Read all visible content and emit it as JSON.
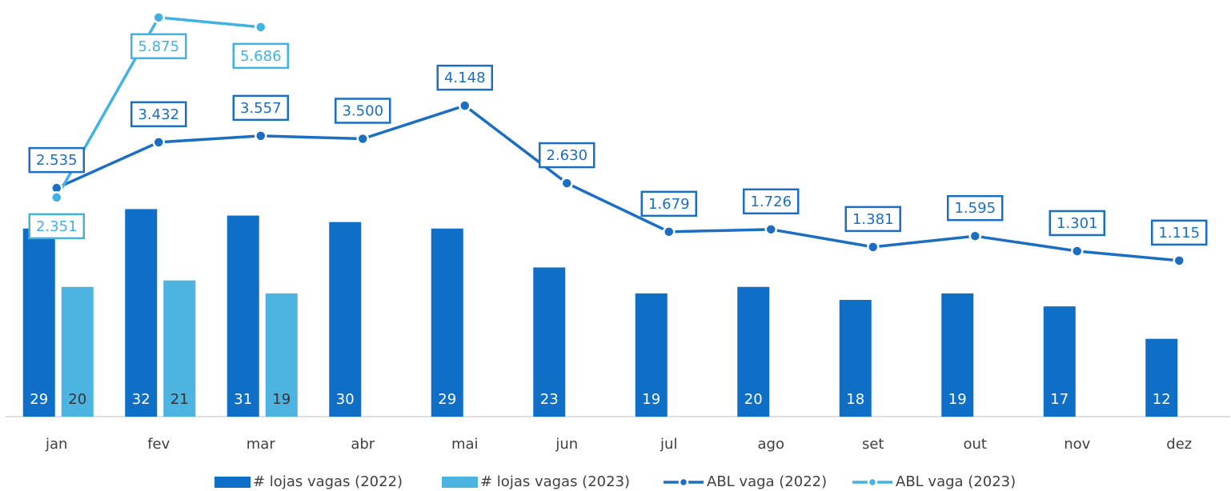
{
  "chart_data": {
    "type": "bar-line",
    "categories": [
      "jan",
      "fev",
      "mar",
      "abr",
      "mai",
      "jun",
      "jul",
      "ago",
      "set",
      "out",
      "nov",
      "dez"
    ],
    "series": [
      {
        "name": "# lojas vagas (2022)",
        "type": "bar",
        "color": "#0f6fc6",
        "values": [
          29,
          32,
          31,
          30,
          29,
          23,
          19,
          20,
          18,
          19,
          17,
          12
        ]
      },
      {
        "name": "# lojas vagas (2023)",
        "type": "bar",
        "color": "#4db3e0",
        "values": [
          20,
          21,
          19,
          null,
          null,
          null,
          null,
          null,
          null,
          null,
          null,
          null
        ]
      },
      {
        "name": "ABL vaga (2022)",
        "type": "line",
        "axis": "y2",
        "color": "#1b6ec2",
        "values": [
          2535,
          3432,
          3557,
          3500,
          4148,
          2630,
          1679,
          1726,
          1381,
          1595,
          1301,
          1115
        ],
        "value_labels": [
          "2.535",
          "3.432",
          "3.557",
          "3.500",
          "4.148",
          "2.630",
          "1.679",
          "1.726",
          "1.381",
          "1.595",
          "1.301",
          "1.115"
        ]
      },
      {
        "name": "ABL vaga (2023)",
        "type": "line",
        "axis": "y2",
        "color": "#41b2e1",
        "values": [
          2351,
          5875,
          5686,
          null,
          null,
          null,
          null,
          null,
          null,
          null,
          null,
          null
        ],
        "value_labels": [
          "2.351",
          "5.875",
          "5.686",
          null,
          null,
          null,
          null,
          null,
          null,
          null,
          null,
          null
        ]
      }
    ],
    "ylim": [
      0,
      63
    ],
    "y2lim": [
      -1940,
      6060
    ],
    "legend": "bottom"
  }
}
